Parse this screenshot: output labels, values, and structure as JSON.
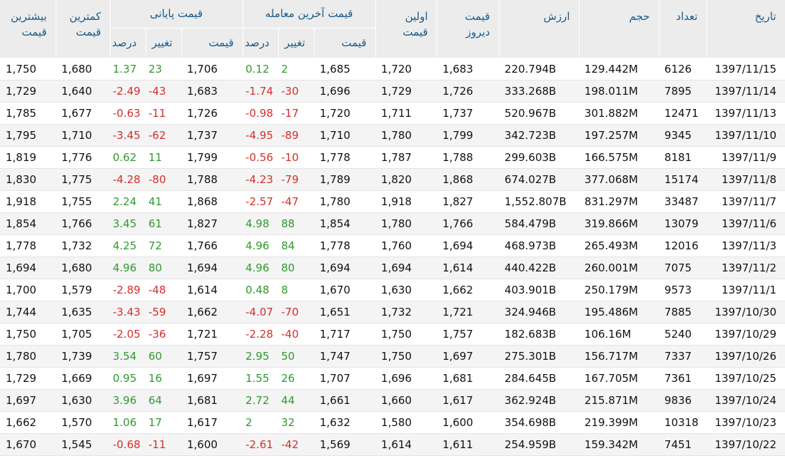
{
  "colors": {
    "header_bg": "#ececec",
    "header_text": "#1a5a88",
    "positive": "#2f9a2f",
    "negative": "#d3302a",
    "row_alt": "#f4f4f4"
  },
  "headers": {
    "highest_price": "بیشترین قیمت",
    "lowest_price": "کمترین قیمت",
    "closing_group": "قیمت پایانی",
    "last_trade_group": "قیمت آخرین معامله",
    "first_price": "اولین قیمت",
    "yesterday_price": "قیمت دیروز",
    "value": "ارزش",
    "volume": "حجم",
    "count": "تعداد",
    "date": "تاریخ",
    "percent": "درصد",
    "change": "تغییر",
    "price": "قیمت"
  },
  "rows": [
    {
      "high": "1,750",
      "low": "1,680",
      "close_pct": "1.37",
      "close_chg": "23",
      "close_price": "1,706",
      "last_pct": "0.12",
      "last_chg": "2",
      "last_price": "1,685",
      "first": "1,720",
      "yesterday": "1,683",
      "value": "220.794B",
      "volume": "129.442M",
      "count": "6126",
      "date": "1397/11/15",
      "close_dir": "pos",
      "last_dir": "pos"
    },
    {
      "high": "1,729",
      "low": "1,640",
      "close_pct": "-2.49",
      "close_chg": "-43",
      "close_price": "1,683",
      "last_pct": "-1.74",
      "last_chg": "-30",
      "last_price": "1,696",
      "first": "1,729",
      "yesterday": "1,726",
      "value": "333.268B",
      "volume": "198.011M",
      "count": "7895",
      "date": "1397/11/14",
      "close_dir": "neg",
      "last_dir": "neg"
    },
    {
      "high": "1,785",
      "low": "1,677",
      "close_pct": "-0.63",
      "close_chg": "-11",
      "close_price": "1,726",
      "last_pct": "-0.98",
      "last_chg": "-17",
      "last_price": "1,720",
      "first": "1,711",
      "yesterday": "1,737",
      "value": "520.967B",
      "volume": "301.882M",
      "count": "12471",
      "date": "1397/11/13",
      "close_dir": "neg",
      "last_dir": "neg"
    },
    {
      "high": "1,795",
      "low": "1,710",
      "close_pct": "-3.45",
      "close_chg": "-62",
      "close_price": "1,737",
      "last_pct": "-4.95",
      "last_chg": "-89",
      "last_price": "1,710",
      "first": "1,780",
      "yesterday": "1,799",
      "value": "342.723B",
      "volume": "197.257M",
      "count": "9345",
      "date": "1397/11/10",
      "close_dir": "neg",
      "last_dir": "neg"
    },
    {
      "high": "1,819",
      "low": "1,776",
      "close_pct": "0.62",
      "close_chg": "11",
      "close_price": "1,799",
      "last_pct": "-0.56",
      "last_chg": "-10",
      "last_price": "1,778",
      "first": "1,787",
      "yesterday": "1,788",
      "value": "299.603B",
      "volume": "166.575M",
      "count": "8181",
      "date": "1397/11/9",
      "close_dir": "pos",
      "last_dir": "neg"
    },
    {
      "high": "1,830",
      "low": "1,775",
      "close_pct": "-4.28",
      "close_chg": "-80",
      "close_price": "1,788",
      "last_pct": "-4.23",
      "last_chg": "-79",
      "last_price": "1,789",
      "first": "1,820",
      "yesterday": "1,868",
      "value": "674.027B",
      "volume": "377.068M",
      "count": "15174",
      "date": "1397/11/8",
      "close_dir": "neg",
      "last_dir": "neg"
    },
    {
      "high": "1,918",
      "low": "1,755",
      "close_pct": "2.24",
      "close_chg": "41",
      "close_price": "1,868",
      "last_pct": "-2.57",
      "last_chg": "-47",
      "last_price": "1,780",
      "first": "1,918",
      "yesterday": "1,827",
      "value": "1,552.807B",
      "volume": "831.297M",
      "count": "33487",
      "date": "1397/11/7",
      "close_dir": "pos",
      "last_dir": "neg"
    },
    {
      "high": "1,854",
      "low": "1,766",
      "close_pct": "3.45",
      "close_chg": "61",
      "close_price": "1,827",
      "last_pct": "4.98",
      "last_chg": "88",
      "last_price": "1,854",
      "first": "1,780",
      "yesterday": "1,766",
      "value": "584.479B",
      "volume": "319.866M",
      "count": "13079",
      "date": "1397/11/6",
      "close_dir": "pos",
      "last_dir": "pos"
    },
    {
      "high": "1,778",
      "low": "1,732",
      "close_pct": "4.25",
      "close_chg": "72",
      "close_price": "1,766",
      "last_pct": "4.96",
      "last_chg": "84",
      "last_price": "1,778",
      "first": "1,760",
      "yesterday": "1,694",
      "value": "468.973B",
      "volume": "265.493M",
      "count": "12016",
      "date": "1397/11/3",
      "close_dir": "pos",
      "last_dir": "pos"
    },
    {
      "high": "1,694",
      "low": "1,680",
      "close_pct": "4.96",
      "close_chg": "80",
      "close_price": "1,694",
      "last_pct": "4.96",
      "last_chg": "80",
      "last_price": "1,694",
      "first": "1,694",
      "yesterday": "1,614",
      "value": "440.422B",
      "volume": "260.001M",
      "count": "7075",
      "date": "1397/11/2",
      "close_dir": "pos",
      "last_dir": "pos"
    },
    {
      "high": "1,700",
      "low": "1,579",
      "close_pct": "-2.89",
      "close_chg": "-48",
      "close_price": "1,614",
      "last_pct": "0.48",
      "last_chg": "8",
      "last_price": "1,670",
      "first": "1,630",
      "yesterday": "1,662",
      "value": "403.901B",
      "volume": "250.179M",
      "count": "9573",
      "date": "1397/11/1",
      "close_dir": "neg",
      "last_dir": "pos"
    },
    {
      "high": "1,744",
      "low": "1,635",
      "close_pct": "-3.43",
      "close_chg": "-59",
      "close_price": "1,662",
      "last_pct": "-4.07",
      "last_chg": "-70",
      "last_price": "1,651",
      "first": "1,732",
      "yesterday": "1,721",
      "value": "324.946B",
      "volume": "195.486M",
      "count": "7885",
      "date": "1397/10/30",
      "close_dir": "neg",
      "last_dir": "neg"
    },
    {
      "high": "1,750",
      "low": "1,705",
      "close_pct": "-2.05",
      "close_chg": "-36",
      "close_price": "1,721",
      "last_pct": "-2.28",
      "last_chg": "-40",
      "last_price": "1,717",
      "first": "1,750",
      "yesterday": "1,757",
      "value": "182.683B",
      "volume": "106.16M",
      "count": "5240",
      "date": "1397/10/29",
      "close_dir": "neg",
      "last_dir": "neg"
    },
    {
      "high": "1,780",
      "low": "1,739",
      "close_pct": "3.54",
      "close_chg": "60",
      "close_price": "1,757",
      "last_pct": "2.95",
      "last_chg": "50",
      "last_price": "1,747",
      "first": "1,750",
      "yesterday": "1,697",
      "value": "275.301B",
      "volume": "156.717M",
      "count": "7337",
      "date": "1397/10/26",
      "close_dir": "pos",
      "last_dir": "pos"
    },
    {
      "high": "1,729",
      "low": "1,669",
      "close_pct": "0.95",
      "close_chg": "16",
      "close_price": "1,697",
      "last_pct": "1.55",
      "last_chg": "26",
      "last_price": "1,707",
      "first": "1,696",
      "yesterday": "1,681",
      "value": "284.645B",
      "volume": "167.705M",
      "count": "7361",
      "date": "1397/10/25",
      "close_dir": "pos",
      "last_dir": "pos"
    },
    {
      "high": "1,697",
      "low": "1,630",
      "close_pct": "3.96",
      "close_chg": "64",
      "close_price": "1,681",
      "last_pct": "2.72",
      "last_chg": "44",
      "last_price": "1,661",
      "first": "1,660",
      "yesterday": "1,617",
      "value": "362.924B",
      "volume": "215.871M",
      "count": "9836",
      "date": "1397/10/24",
      "close_dir": "pos",
      "last_dir": "pos"
    },
    {
      "high": "1,662",
      "low": "1,570",
      "close_pct": "1.06",
      "close_chg": "17",
      "close_price": "1,617",
      "last_pct": "2",
      "last_chg": "32",
      "last_price": "1,632",
      "first": "1,580",
      "yesterday": "1,600",
      "value": "354.698B",
      "volume": "219.399M",
      "count": "10318",
      "date": "1397/10/23",
      "close_dir": "pos",
      "last_dir": "pos"
    },
    {
      "high": "1,670",
      "low": "1,545",
      "close_pct": "-0.68",
      "close_chg": "-11",
      "close_price": "1,600",
      "last_pct": "-2.61",
      "last_chg": "-42",
      "last_price": "1,569",
      "first": "1,614",
      "yesterday": "1,611",
      "value": "254.959B",
      "volume": "159.342M",
      "count": "7451",
      "date": "1397/10/22",
      "close_dir": "neg",
      "last_dir": "neg"
    }
  ]
}
